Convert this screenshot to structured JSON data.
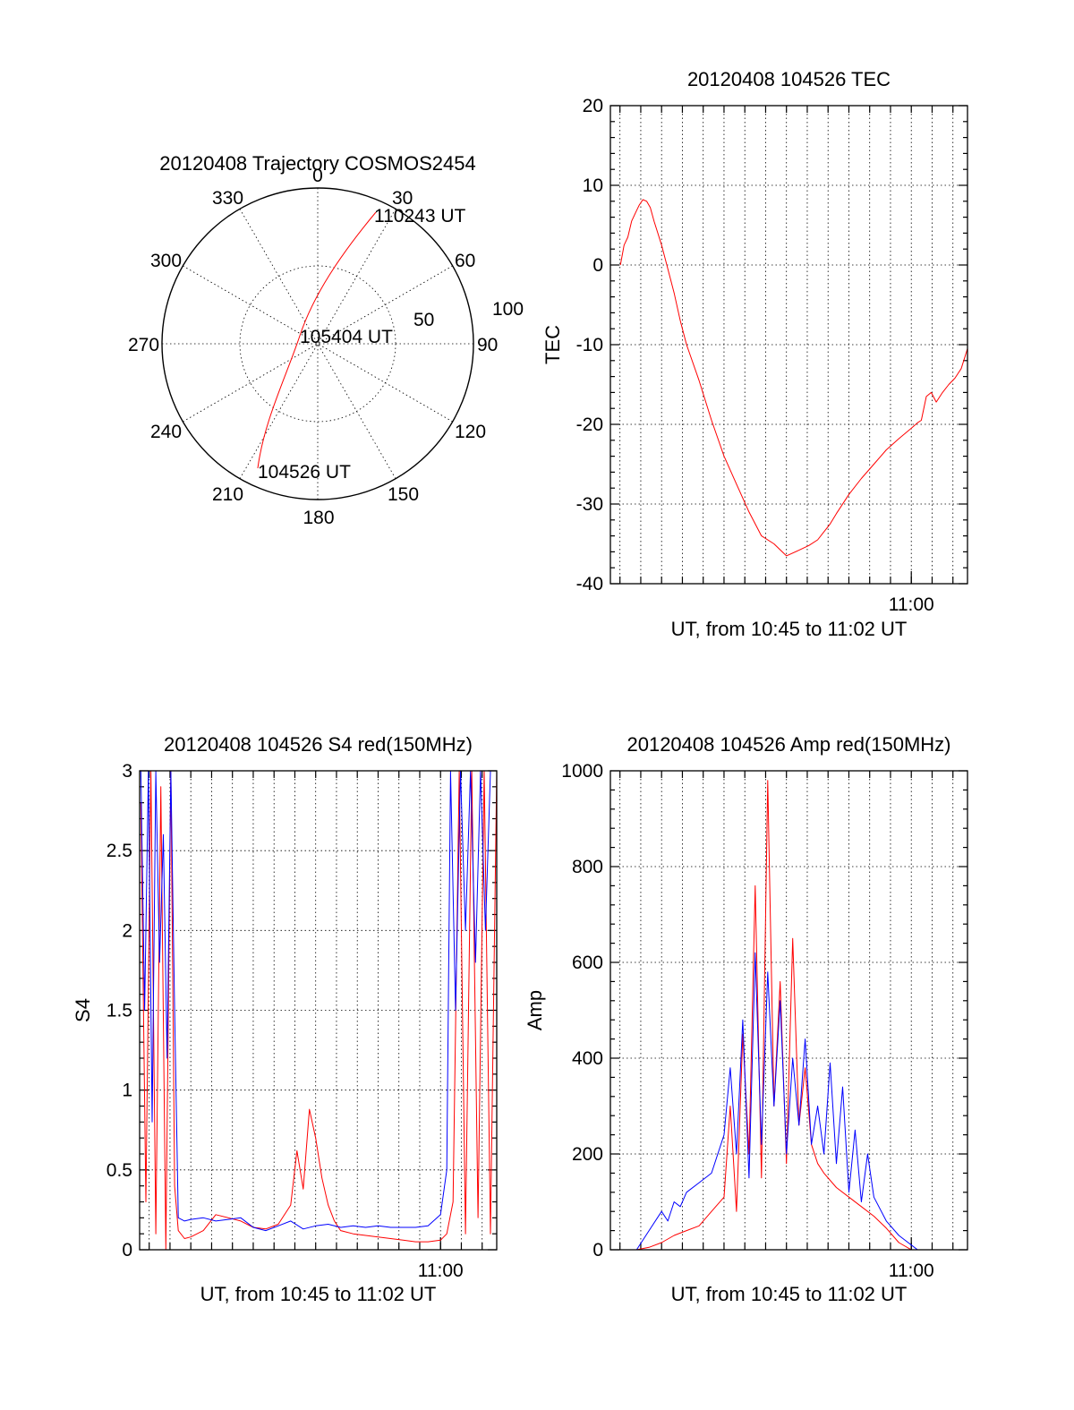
{
  "colors": {
    "red": "#ff0000",
    "blue": "#0000ff",
    "axis": "#000000"
  },
  "polar": {
    "title": "20120408 Trajectory COSMOS2454",
    "azimuth_labels": [
      "0",
      "30",
      "60",
      "90",
      "120",
      "150",
      "180",
      "210",
      "240",
      "270",
      "300",
      "330"
    ],
    "radius_labels": [
      "50",
      "100"
    ],
    "start_label": "104526 UT",
    "mid_label": "105404 UT",
    "end_label": "110243 UT"
  },
  "chart_data": [
    {
      "type": "line",
      "title": "20120408 104526 TEC",
      "xlabel": "UT, from 10:45 to 11:02 UT",
      "ylabel": "TEC",
      "xlim": [
        10.759,
        11.045
      ],
      "ylim": [
        -40,
        20
      ],
      "x_ticks": [
        11.0
      ],
      "x_ticklabels": [
        "11:00"
      ],
      "y_ticks": [
        20,
        10,
        0,
        -10,
        -20,
        -30,
        -40
      ],
      "y_ticklabels": [
        "20",
        "10",
        "0",
        "-10",
        "-20",
        "-30",
        "-40"
      ],
      "grid": true,
      "series": [
        {
          "color": "#ff0000",
          "x": [
            10.767,
            10.77,
            10.773,
            10.776,
            10.779,
            10.782,
            10.785,
            10.788,
            10.791,
            10.794,
            10.797,
            10.8,
            10.805,
            10.81,
            10.815,
            10.82,
            10.83,
            10.84,
            10.85,
            10.86,
            10.87,
            10.88,
            10.89,
            10.9,
            10.91,
            10.918,
            10.925,
            10.93,
            10.935,
            10.94,
            10.95,
            10.96,
            10.97,
            10.98,
            10.99,
            11.0,
            11.005,
            11.008,
            11.012,
            11.016,
            11.02,
            11.025,
            11.03,
            11.035,
            11.04,
            11.045
          ],
          "y": [
            0,
            2.5,
            3.5,
            5.5,
            6.5,
            7.5,
            8.2,
            8.0,
            7.2,
            5.5,
            4.0,
            2.5,
            -0.5,
            -3.5,
            -7.0,
            -10.0,
            -14.5,
            -19.5,
            -24.0,
            -27.5,
            -31.0,
            -34.0,
            -35.0,
            -36.5,
            -35.8,
            -35.2,
            -34.5,
            -33.5,
            -32.5,
            -31.2,
            -28.8,
            -26.8,
            -25.0,
            -23.2,
            -21.8,
            -20.5,
            -19.8,
            -19.5,
            -16.5,
            -16.0,
            -17.2,
            -16.0,
            -15.0,
            -14.2,
            -13.0,
            -10.5
          ]
        }
      ]
    },
    {
      "type": "line",
      "title": "20120408 104526 S4 red(150MHz)",
      "xlabel": "UT, from 10:45 to 11:02 UT",
      "ylabel": "S4",
      "xlim": [
        10.759,
        11.045
      ],
      "ylim": [
        0,
        3
      ],
      "x_ticks": [
        11.0
      ],
      "x_ticklabels": [
        "11:00"
      ],
      "y_ticks": [
        3,
        2.5,
        2,
        1.5,
        1,
        0.5,
        0
      ],
      "y_ticklabels": [
        "3",
        "2.5",
        "2",
        "1.5",
        "1",
        "0.5",
        "0"
      ],
      "grid": true,
      "series": [
        {
          "color": "#ff0000",
          "x": [
            10.76,
            10.764,
            10.768,
            10.772,
            10.776,
            10.78,
            10.784,
            10.787,
            10.79,
            10.795,
            10.8,
            10.81,
            10.82,
            10.83,
            10.84,
            10.85,
            10.86,
            10.87,
            10.88,
            10.885,
            10.89,
            10.895,
            10.9,
            10.905,
            10.91,
            10.915,
            10.92,
            10.93,
            10.94,
            10.95,
            10.96,
            10.97,
            10.98,
            10.99,
            11.0,
            11.005,
            11.01,
            11.015,
            11.02,
            11.025,
            11.03,
            11.035,
            11.04,
            11.045
          ],
          "y": [
            2.8,
            0.3,
            3.0,
            0.1,
            2.9,
            0.0,
            3.0,
            0.4,
            0.12,
            0.07,
            0.08,
            0.12,
            0.22,
            0.2,
            0.18,
            0.14,
            0.13,
            0.16,
            0.28,
            0.62,
            0.38,
            0.88,
            0.7,
            0.45,
            0.28,
            0.18,
            0.12,
            0.1,
            0.09,
            0.08,
            0.07,
            0.06,
            0.05,
            0.05,
            0.06,
            0.1,
            0.3,
            3.0,
            0.1,
            3.0,
            0.2,
            3.0,
            0.1,
            3.0
          ]
        },
        {
          "color": "#0000ff",
          "x": [
            10.76,
            10.763,
            10.766,
            10.769,
            10.772,
            10.775,
            10.778,
            10.781,
            10.784,
            10.787,
            10.79,
            10.795,
            10.8,
            10.81,
            10.82,
            10.83,
            10.84,
            10.85,
            10.86,
            10.87,
            10.88,
            10.89,
            10.9,
            10.91,
            10.92,
            10.93,
            10.94,
            10.95,
            10.96,
            10.97,
            10.98,
            10.99,
            11.0,
            11.005,
            11.008,
            11.012,
            11.016,
            11.02,
            11.024,
            11.028,
            11.032,
            11.036,
            11.04,
            11.045
          ],
          "y": [
            3.0,
            1.5,
            3.0,
            0.8,
            3.0,
            1.8,
            2.6,
            1.2,
            3.0,
            1.5,
            0.2,
            0.18,
            0.19,
            0.2,
            0.18,
            0.19,
            0.2,
            0.14,
            0.12,
            0.15,
            0.18,
            0.13,
            0.15,
            0.16,
            0.14,
            0.15,
            0.14,
            0.15,
            0.14,
            0.14,
            0.14,
            0.15,
            0.22,
            0.5,
            3.0,
            1.5,
            3.0,
            2.0,
            3.0,
            1.8,
            3.0,
            2.0,
            3.0,
            3.0
          ]
        }
      ]
    },
    {
      "type": "line",
      "title": "20120408 104526 Amp red(150MHz)",
      "xlabel": "UT, from 10:45 to 11:02 UT",
      "ylabel": "Amp",
      "xlim": [
        10.759,
        11.045
      ],
      "ylim": [
        0,
        1000
      ],
      "x_ticks": [
        11.0
      ],
      "x_ticklabels": [
        "11:00"
      ],
      "y_ticks": [
        1000,
        800,
        600,
        400,
        200,
        0
      ],
      "y_ticklabels": [
        "1000",
        "800",
        "600",
        "400",
        "200",
        "0"
      ],
      "grid": true,
      "series": [
        {
          "color": "#ff0000",
          "x": [
            10.759,
            10.78,
            10.79,
            10.8,
            10.81,
            10.82,
            10.83,
            10.84,
            10.85,
            10.855,
            10.86,
            10.865,
            10.87,
            10.875,
            10.88,
            10.885,
            10.89,
            10.895,
            10.9,
            10.905,
            10.91,
            10.915,
            10.92,
            10.925,
            10.93,
            10.94,
            10.95,
            10.96,
            10.97,
            10.98,
            10.99,
            11.0,
            11.045
          ],
          "y": [
            0,
            0,
            5,
            15,
            30,
            40,
            50,
            80,
            110,
            300,
            80,
            450,
            200,
            760,
            150,
            980,
            300,
            560,
            180,
            650,
            260,
            380,
            220,
            180,
            160,
            130,
            110,
            90,
            70,
            45,
            15,
            0,
            0
          ]
        },
        {
          "color": "#0000ff",
          "x": [
            10.759,
            10.78,
            10.79,
            10.8,
            10.805,
            10.81,
            10.815,
            10.82,
            10.83,
            10.84,
            10.85,
            10.855,
            10.86,
            10.865,
            10.87,
            10.875,
            10.88,
            10.885,
            10.89,
            10.895,
            10.9,
            10.905,
            10.91,
            10.915,
            10.92,
            10.925,
            10.93,
            10.935,
            10.94,
            10.945,
            10.95,
            10.955,
            10.96,
            10.965,
            10.97,
            10.98,
            10.99,
            11.0,
            11.005,
            11.045
          ],
          "y": [
            0,
            0,
            40,
            80,
            60,
            100,
            90,
            120,
            140,
            160,
            240,
            380,
            200,
            480,
            150,
            620,
            220,
            580,
            300,
            520,
            200,
            400,
            260,
            440,
            220,
            300,
            200,
            390,
            180,
            340,
            120,
            250,
            100,
            200,
            110,
            60,
            30,
            10,
            0,
            0
          ]
        }
      ]
    }
  ]
}
